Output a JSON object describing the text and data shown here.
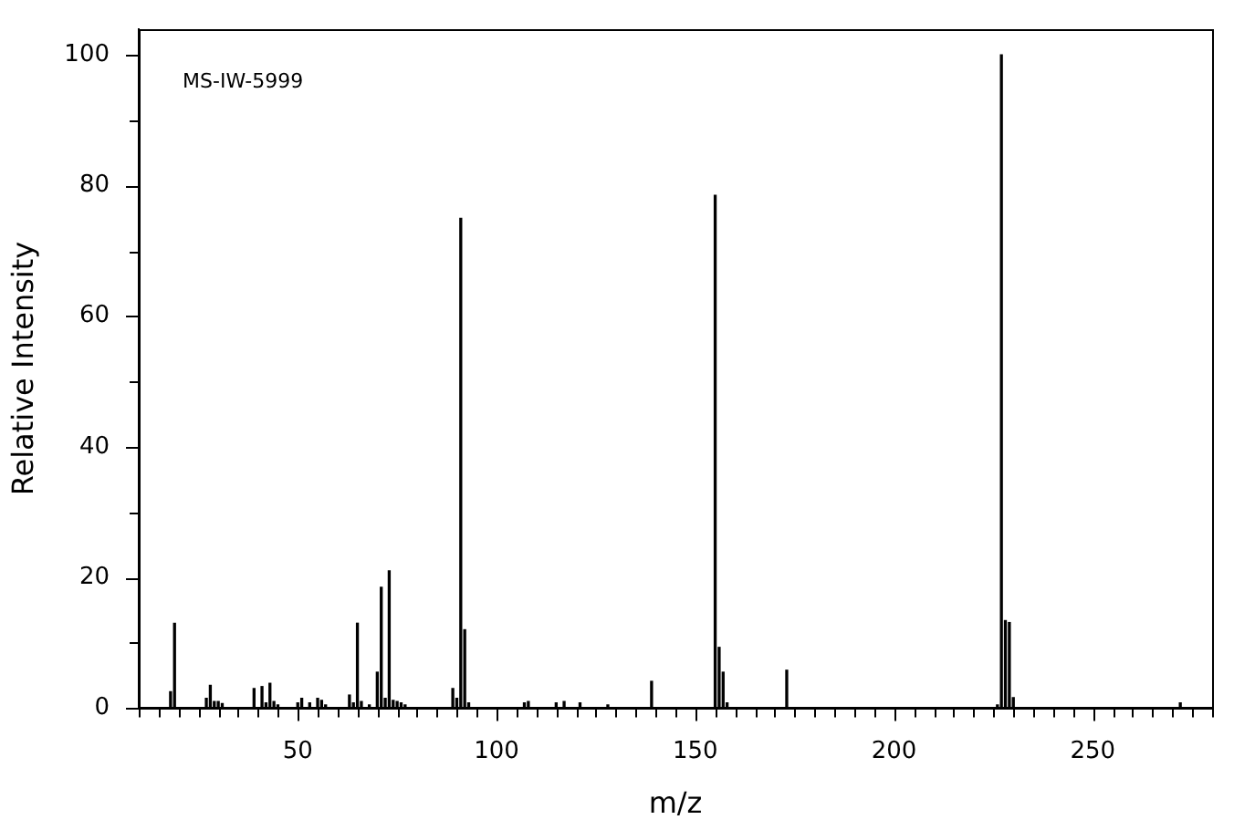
{
  "chart_data": {
    "type": "bar",
    "xlabel": "m/z",
    "ylabel": "Relative Intensity",
    "annotations": [
      "MS-IW-5999"
    ],
    "x": [
      18,
      19,
      27,
      28,
      29,
      30,
      31,
      39,
      41,
      42,
      43,
      44,
      45,
      50,
      51,
      53,
      55,
      56,
      57,
      63,
      64,
      65,
      66,
      68,
      70,
      71,
      72,
      73,
      74,
      75,
      76,
      77,
      89,
      90,
      91,
      92,
      93,
      107,
      108,
      115,
      117,
      121,
      128,
      139,
      155,
      156,
      157,
      158,
      173,
      226,
      227,
      228,
      229,
      230,
      272
    ],
    "values": [
      2.5,
      13,
      1.5,
      3.5,
      1,
      1,
      0.7,
      3,
      3.3,
      0.8,
      3.8,
      1,
      0.5,
      0.8,
      1.5,
      0.8,
      1.5,
      1.2,
      0.5,
      2,
      0.8,
      13,
      1,
      0.5,
      5.5,
      18.5,
      1.5,
      21,
      1.2,
      1,
      0.8,
      0.5,
      3,
      1.5,
      75,
      12,
      0.8,
      0.8,
      1,
      0.8,
      1,
      0.8,
      0.5,
      4.1,
      78.5,
      9.3,
      5.5,
      0.8,
      5.8,
      0.5,
      100,
      13.4,
      13.1,
      1.6,
      0.8
    ],
    "color": "#000000",
    "xlim": [
      10,
      280
    ],
    "xticks": [
      {
        "value": 10,
        "label": null
      },
      {
        "value": 15,
        "label": null
      },
      {
        "value": 20,
        "label": null
      },
      {
        "value": 25,
        "label": null
      },
      {
        "value": 30,
        "label": null
      },
      {
        "value": 35,
        "label": null
      },
      {
        "value": 40,
        "label": null
      },
      {
        "value": 45,
        "label": null
      },
      50,
      {
        "value": 55,
        "label": null
      },
      {
        "value": 60,
        "label": null
      },
      {
        "value": 65,
        "label": null
      },
      {
        "value": 70,
        "label": null
      },
      {
        "value": 75,
        "label": null
      },
      {
        "value": 80,
        "label": null
      },
      {
        "value": 85,
        "label": null
      },
      {
        "value": 90,
        "label": null
      },
      {
        "value": 95,
        "label": null
      },
      100,
      {
        "value": 105,
        "label": null
      },
      {
        "value": 110,
        "label": null
      },
      {
        "value": 115,
        "label": null
      },
      {
        "value": 120,
        "label": null
      },
      {
        "value": 125,
        "label": null
      },
      {
        "value": 130,
        "label": null
      },
      {
        "value": 135,
        "label": null
      },
      {
        "value": 140,
        "label": null
      },
      {
        "value": 145,
        "label": null
      },
      150,
      {
        "value": 155,
        "label": null
      },
      {
        "value": 160,
        "label": null
      },
      {
        "value": 165,
        "label": null
      },
      {
        "value": 170,
        "label": null
      },
      {
        "value": 175,
        "label": null
      },
      {
        "value": 180,
        "label": null
      },
      {
        "value": 185,
        "label": null
      },
      {
        "value": 190,
        "label": null
      },
      {
        "value": 195,
        "label": null
      },
      200,
      {
        "value": 205,
        "label": null
      },
      {
        "value": 210,
        "label": null
      },
      {
        "value": 215,
        "label": null
      },
      {
        "value": 220,
        "label": null
      },
      {
        "value": 225,
        "label": null
      },
      {
        "value": 230,
        "label": null
      },
      {
        "value": 235,
        "label": null
      },
      {
        "value": 240,
        "label": null
      },
      {
        "value": 245,
        "label": null
      },
      250,
      {
        "value": 255,
        "label": null
      },
      {
        "value": 260,
        "label": null
      },
      {
        "value": 265,
        "label": null
      },
      {
        "value": 270,
        "label": null
      },
      {
        "value": 275,
        "label": null
      },
      {
        "value": 280,
        "label": null
      }
    ],
    "ylim": [
      0,
      104
    ],
    "yticks": [
      0,
      {
        "value": 10,
        "label": null
      },
      20,
      {
        "value": 30,
        "label": null
      },
      40,
      {
        "value": 50,
        "label": null
      },
      60,
      {
        "value": 70,
        "label": null
      },
      80,
      {
        "value": 90,
        "label": null
      },
      100
    ],
    "grid": false,
    "legend": false
  }
}
